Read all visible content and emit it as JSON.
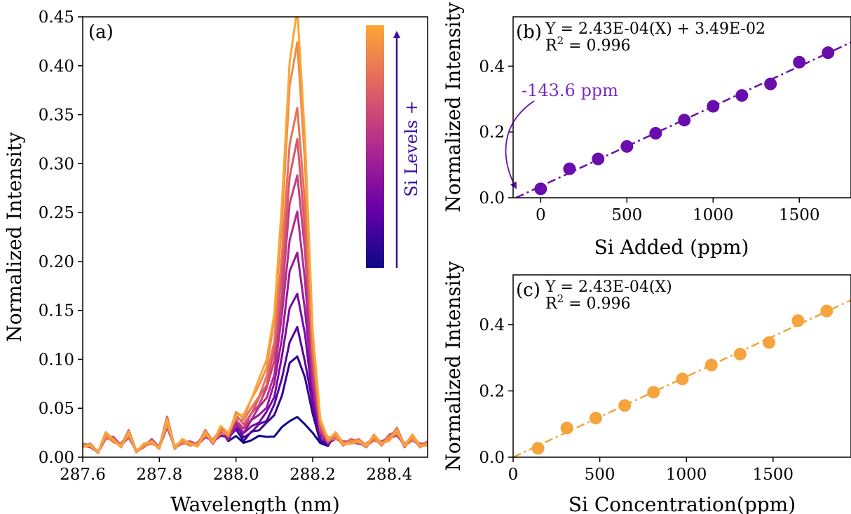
{
  "chart_data": [
    {
      "panel": "(a)",
      "type": "line",
      "xlabel": "Wavelength (nm)",
      "ylabel": "Normalized Intensity",
      "xlim": [
        287.6,
        288.5
      ],
      "ylim": [
        0,
        0.45
      ],
      "xticks": [
        287.6,
        287.8,
        288.0,
        288.2,
        288.4
      ],
      "xtick_labels": [
        "287.6",
        "287.8",
        "288.0",
        "288.2",
        "288.4"
      ],
      "yticks": [
        0,
        0.05,
        0.1,
        0.15,
        0.2,
        0.25,
        0.3,
        0.35,
        0.4,
        0.45
      ],
      "ytick_labels": [
        "0.00",
        "0.05",
        "0.10",
        "0.15",
        "0.20",
        "0.25",
        "0.30",
        "0.35",
        "0.40",
        "0.45"
      ],
      "grid": false,
      "colorbar": {
        "label": "Si Levels +",
        "colormap": "plasma",
        "colors": [
          "#0d0887",
          "#6a00a8",
          "#b12a90",
          "#e16462",
          "#fca636"
        ]
      },
      "series_peaks": [
        0.025,
        0.09,
        0.118,
        0.155,
        0.195,
        0.235,
        0.275,
        0.31,
        0.345,
        0.41,
        0.442
      ],
      "x": [
        287.6,
        287.62,
        287.64,
        287.66,
        287.68,
        287.7,
        287.72,
        287.74,
        287.76,
        287.78,
        287.8,
        287.82,
        287.84,
        287.86,
        287.88,
        287.9,
        287.92,
        287.94,
        287.96,
        287.98,
        288.0,
        288.02,
        288.04,
        288.06,
        288.08,
        288.1,
        288.12,
        288.14,
        288.16,
        288.18,
        288.2,
        288.22,
        288.24,
        288.26,
        288.28,
        288.3,
        288.32,
        288.34,
        288.36,
        288.38,
        288.4,
        288.42,
        288.44,
        288.46,
        288.48,
        288.5
      ],
      "baseline": [
        0.012,
        0.012,
        0.005,
        0.022,
        0.018,
        0.012,
        0.024,
        0.006,
        0.012,
        0.016,
        0.01,
        0.036,
        0.01,
        0.016,
        0.014,
        0.013,
        0.024,
        0.016,
        0.024,
        0.016,
        0.024,
        0.012,
        0.016,
        0.016,
        0.016,
        0.016,
        0.016,
        0.016,
        0.014,
        0.016,
        0.022,
        0.012,
        0.012,
        0.022,
        0.014,
        0.016,
        0.016,
        0.012,
        0.02,
        0.014,
        0.02,
        0.026,
        0.012,
        0.02,
        0.012,
        0.014
      ],
      "peak_shape": [
        0,
        0,
        0,
        0,
        0,
        0,
        0,
        0,
        0,
        0,
        0,
        0,
        0,
        0,
        0,
        0,
        0,
        0,
        0.01,
        0.02,
        0.05,
        0.07,
        0.1,
        0.14,
        0.19,
        0.3,
        0.55,
        0.88,
        1.0,
        0.7,
        0.25,
        0.06,
        0.015,
        0,
        0,
        0,
        0,
        0,
        0,
        0,
        0,
        0,
        0,
        0,
        0,
        0
      ]
    },
    {
      "panel": "(b)",
      "type": "scatter",
      "xlabel": "Si Added (ppm)",
      "ylabel": "Normalized Intensity",
      "xlim": [
        -160,
        1800
      ],
      "ylim": [
        0,
        0.55
      ],
      "xticks": [
        0,
        500,
        1000,
        1500
      ],
      "xtick_labels": [
        "0",
        "500",
        "1000",
        "1500"
      ],
      "yticks": [
        0,
        0.2,
        0.4
      ],
      "ytick_labels": [
        "0.0",
        "0.2",
        "0.4"
      ],
      "equation": "Y = 2.43E-04(X) + 3.49E-02",
      "r2": "R",
      "r2_sup": "2",
      "r2_value": " = 0.996",
      "annotation": "-143.6 ppm",
      "fit": {
        "slope": 0.000243,
        "intercept": 0.0349,
        "x_intercept": -143.6
      },
      "color": "#6a0dad",
      "x": [
        0,
        167,
        333,
        500,
        667,
        833,
        1000,
        1167,
        1333,
        1500,
        1667
      ],
      "y": [
        0.027,
        0.088,
        0.118,
        0.156,
        0.196,
        0.236,
        0.278,
        0.311,
        0.346,
        0.412,
        0.441
      ]
    },
    {
      "panel": "(c)",
      "type": "scatter",
      "xlabel": "Si Concentration(ppm)",
      "ylabel": "Normalized Intensity",
      "xlim": [
        0,
        1950
      ],
      "ylim": [
        0,
        0.55
      ],
      "xticks": [
        0,
        500,
        1000,
        1500
      ],
      "xtick_labels": [
        "0",
        "500",
        "1000",
        "1500"
      ],
      "yticks": [
        0,
        0.2,
        0.4
      ],
      "ytick_labels": [
        "0.0",
        "0.2",
        "0.4"
      ],
      "equation": "Y = 2.43E-04(X)",
      "r2": "R",
      "r2_sup": "2",
      "r2_value": " = 0.996",
      "fit": {
        "slope": 0.000243,
        "intercept": 0
      },
      "color": "#f5a33d",
      "x": [
        144,
        310,
        477,
        644,
        810,
        977,
        1144,
        1310,
        1477,
        1644,
        1810
      ],
      "y": [
        0.027,
        0.088,
        0.118,
        0.156,
        0.196,
        0.236,
        0.278,
        0.311,
        0.346,
        0.412,
        0.441
      ]
    }
  ]
}
